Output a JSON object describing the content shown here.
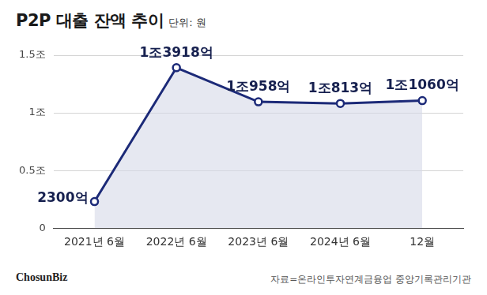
{
  "chart_data": {
    "type": "area",
    "title": "P2P 대출 잔액 추이",
    "subtitle": "단위: 원",
    "source": "자료=온라인투자연계금융업 중앙기록관리기관",
    "credit": "ChosunBiz",
    "categories": [
      "2021년 6월",
      "2022년 6월",
      "2023년 6월",
      "2024년 6월",
      "12월"
    ],
    "values": [
      0.23,
      1.3918,
      1.0958,
      1.0813,
      1.106
    ],
    "value_labels": [
      "2300억",
      "1조3918억",
      "1조958억",
      "1조813억",
      "1조1060억"
    ],
    "color": "#1c2a78",
    "marker": "circle",
    "data_labels": true,
    "grid": true,
    "ylim": [
      0,
      1.5
    ],
    "yticks": [
      0,
      {
        "value": 0.5,
        "label": "0.5조"
      },
      {
        "value": 1,
        "label": "1조"
      },
      {
        "value": 1.5,
        "label": "1.5조"
      }
    ]
  }
}
